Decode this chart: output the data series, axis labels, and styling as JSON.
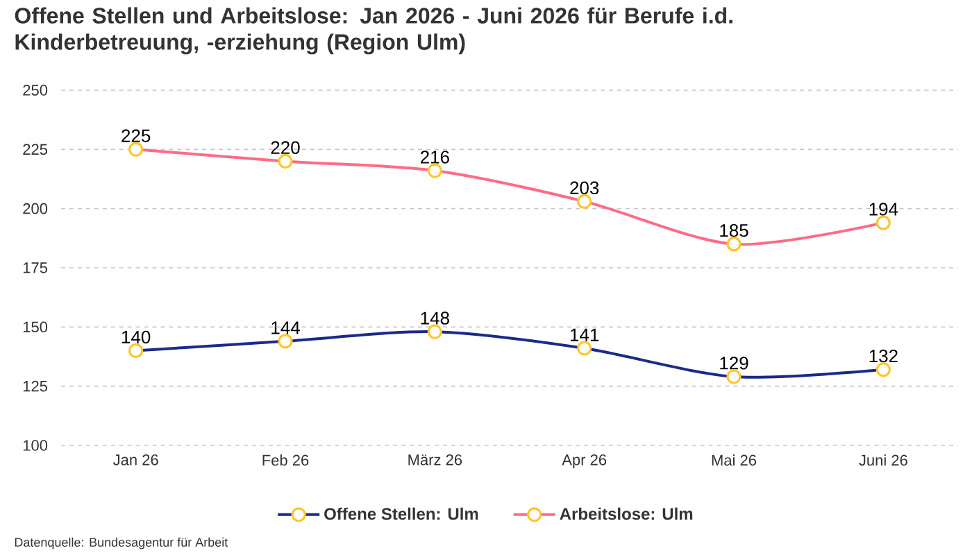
{
  "chart_data": {
    "type": "line",
    "title": "Offene Stellen und Arbeitslose: Jan 2026 - Juni 2026 für Berufe i.d. Kinderbetreuung, -erziehung (Region Ulm)",
    "categories": [
      "Jan 26",
      "Feb 26",
      "März 26",
      "Apr 26",
      "Mai 26",
      "Juni 26"
    ],
    "series": [
      {
        "name": "Offene Stellen: Ulm",
        "color": "#1b2a8a",
        "values": [
          140,
          144,
          148,
          141,
          129,
          132
        ]
      },
      {
        "name": "Arbeitslose: Ulm",
        "color": "#ff6b84",
        "values": [
          225,
          220,
          216,
          203,
          185,
          194
        ]
      }
    ],
    "ylim": [
      100,
      250
    ],
    "yticks": [
      100,
      125,
      150,
      175,
      200,
      225,
      250
    ],
    "grid": "y",
    "legend": "bottom",
    "marker": "circle",
    "line_style": "solid",
    "data_labels": true,
    "annotations": [
      "Datenquelle: Bundesagentur für Arbeit"
    ]
  }
}
